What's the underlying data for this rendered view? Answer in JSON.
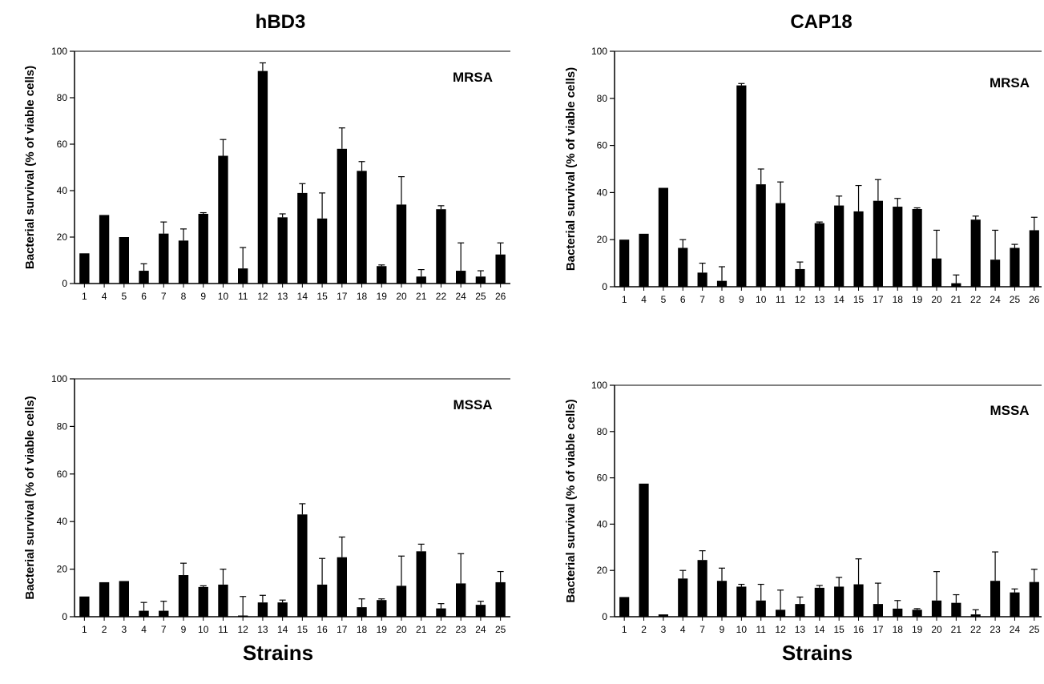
{
  "titles": {
    "left": "hBD3",
    "right": "CAP18"
  },
  "xlabels": {
    "left": "Strains",
    "right": "Strains"
  },
  "chart_data": [
    {
      "type": "bar",
      "panel": "hBD3 MRSA",
      "title": "hBD3",
      "annotation": "MRSA",
      "ylabel": "Bacterial survival (% of viable cells)",
      "xlabel": "",
      "ylim": [
        0,
        100
      ],
      "yticks": [
        0,
        20,
        40,
        60,
        80,
        100
      ],
      "grid": false,
      "categories": [
        "1",
        "4",
        "5",
        "6",
        "7",
        "8",
        "9",
        "10",
        "11",
        "12",
        "13",
        "14",
        "15",
        "17",
        "18",
        "19",
        "20",
        "21",
        "22",
        "24",
        "25",
        "26"
      ],
      "values": [
        13,
        29.5,
        20,
        5.5,
        21.5,
        18.5,
        30,
        55,
        6.5,
        91.5,
        28.5,
        39,
        28,
        58,
        48.5,
        7.5,
        34,
        3,
        32,
        5.5,
        3,
        12.5
      ],
      "errors": [
        0,
        0,
        0,
        3,
        5,
        5,
        0.5,
        7,
        9,
        3.5,
        1.5,
        4,
        11,
        9,
        4,
        0.5,
        12,
        3,
        1.5,
        12,
        2.5,
        5
      ]
    },
    {
      "type": "bar",
      "panel": "CAP18 MRSA",
      "title": "CAP18",
      "annotation": "MRSA",
      "ylabel": "Bacterial survival (% of viable cells)",
      "xlabel": "",
      "ylim": [
        0,
        100
      ],
      "yticks": [
        0,
        20,
        40,
        60,
        80,
        100
      ],
      "grid": false,
      "categories": [
        "1",
        "4",
        "5",
        "6",
        "7",
        "8",
        "9",
        "10",
        "11",
        "12",
        "13",
        "14",
        "15",
        "17",
        "18",
        "19",
        "20",
        "21",
        "22",
        "24",
        "25",
        "26"
      ],
      "values": [
        20,
        22.5,
        42,
        16.5,
        6,
        2.5,
        85.5,
        43.5,
        35.5,
        7.5,
        27,
        34.5,
        32,
        36.5,
        34,
        33,
        12,
        1.5,
        28.5,
        11.5,
        16.5,
        24
      ],
      "errors": [
        0,
        0,
        0,
        3.5,
        4,
        6,
        0.8,
        6.5,
        9,
        3,
        0.5,
        4,
        11,
        9,
        3.5,
        0.5,
        12,
        3.5,
        1.5,
        12.5,
        1.5,
        5.5
      ]
    },
    {
      "type": "bar",
      "panel": "hBD3 MSSA",
      "title": "",
      "annotation": "MSSA",
      "ylabel": "Bacterial survival (% of viable cells)",
      "xlabel": "Strains",
      "ylim": [
        0,
        100
      ],
      "yticks": [
        0,
        20,
        40,
        60,
        80,
        100
      ],
      "grid": false,
      "categories": [
        "1",
        "2",
        "3",
        "4",
        "7",
        "9",
        "10",
        "11",
        "12",
        "13",
        "14",
        "15",
        "16",
        "17",
        "18",
        "19",
        "20",
        "21",
        "22",
        "23",
        "24",
        "25"
      ],
      "values": [
        8.5,
        14.5,
        15,
        2.5,
        2.5,
        17.5,
        12.5,
        13.5,
        0.5,
        6,
        6,
        43,
        13.5,
        25,
        4,
        7,
        13,
        27.5,
        3.5,
        14,
        5,
        14.5
      ],
      "errors": [
        0,
        0,
        0,
        3.5,
        4,
        5,
        0.5,
        6.5,
        8,
        3,
        1,
        4.5,
        11,
        8.5,
        3.5,
        0.5,
        12.5,
        3,
        2,
        12.5,
        1.5,
        4.5
      ]
    },
    {
      "type": "bar",
      "panel": "CAP18 MSSA",
      "title": "",
      "annotation": "MSSA",
      "ylabel": "Bacterial survival (% of viable cells)",
      "xlabel": "Strains",
      "ylim": [
        0,
        100
      ],
      "yticks": [
        0,
        20,
        40,
        60,
        80,
        100
      ],
      "grid": false,
      "categories": [
        "1",
        "2",
        "3",
        "4",
        "7",
        "9",
        "10",
        "11",
        "12",
        "13",
        "14",
        "15",
        "16",
        "17",
        "18",
        "19",
        "20",
        "21",
        "22",
        "23",
        "24",
        "25"
      ],
      "values": [
        8.5,
        57.5,
        1,
        16.5,
        24.5,
        15.5,
        13,
        7,
        3,
        5.5,
        12.5,
        13,
        14,
        5.5,
        3.5,
        3,
        7,
        6,
        1,
        15.5,
        10.5,
        15
      ],
      "errors": [
        0,
        0,
        0,
        3.5,
        4,
        5.5,
        1,
        7,
        8.5,
        3,
        1,
        4,
        11,
        9,
        3.5,
        0.5,
        12.5,
        3.5,
        2,
        12.5,
        1.5,
        5.5
      ]
    }
  ]
}
